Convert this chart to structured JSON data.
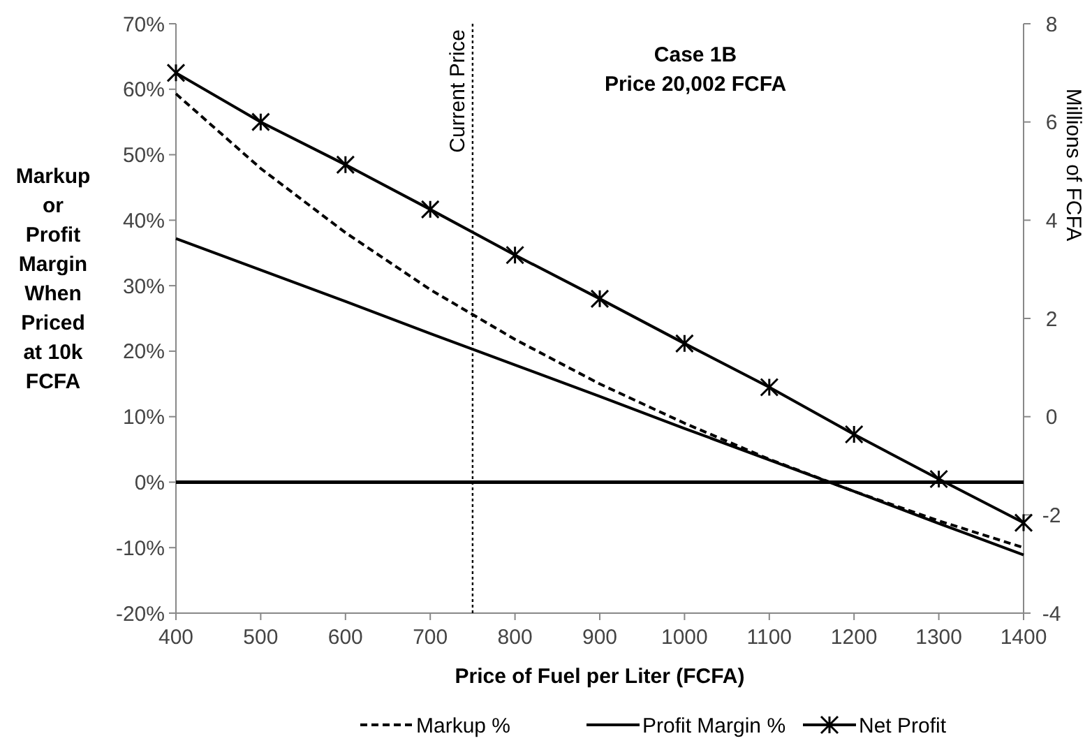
{
  "chart_data": {
    "type": "line",
    "xlabel": "Price of Fuel per Liter (FCFA)",
    "ylabel": "Markup or Profit Margin When Priced at 10k FCFA",
    "y2label": "Millions of FCFA",
    "x": [
      400,
      500,
      600,
      700,
      800,
      900,
      1000,
      1100,
      1200,
      1300,
      1400
    ],
    "xlim": [
      400,
      1400
    ],
    "xticks": [
      400,
      500,
      600,
      700,
      800,
      900,
      1000,
      1100,
      1200,
      1300,
      1400
    ],
    "ylim": [
      -20,
      70
    ],
    "yticks": [
      {
        "value": -20,
        "label": "-20%"
      },
      {
        "value": -10,
        "label": "-10%"
      },
      {
        "value": 0,
        "label": "0%"
      },
      {
        "value": 10,
        "label": "10%"
      },
      {
        "value": 20,
        "label": "20%"
      },
      {
        "value": 30,
        "label": "30%"
      },
      {
        "value": 40,
        "label": "40%"
      },
      {
        "value": 50,
        "label": "50%"
      },
      {
        "value": 60,
        "label": "60%"
      },
      {
        "value": 70,
        "label": "70%"
      }
    ],
    "y2lim": [
      -4,
      8
    ],
    "y2ticks": [
      -4,
      -2,
      0,
      2,
      4,
      6,
      8
    ],
    "series": [
      {
        "name": "Markup %",
        "color": "#000000",
        "line_style": "dashed",
        "marker": "none",
        "values": [
          59.3,
          47.9,
          38.1,
          29.4,
          21.8,
          15.0,
          9.0,
          3.5,
          -1.4,
          -5.9,
          -10.0
        ]
      },
      {
        "name": "Profit Margin %",
        "color": "#000000",
        "line_style": "solid",
        "marker": "none",
        "values": [
          37.2,
          32.4,
          27.6,
          22.7,
          17.9,
          13.1,
          8.2,
          3.4,
          -1.4,
          -6.3,
          -11.1
        ]
      },
      {
        "name": "Net Profit",
        "color": "#000000",
        "line_style": "solid",
        "marker": "cross",
        "axis": "y2",
        "values": [
          7.0,
          6.0,
          5.13,
          4.22,
          3.29,
          2.4,
          1.49,
          0.6,
          -0.36,
          -1.27,
          -2.16
        ]
      }
    ],
    "ref_lines": [
      {
        "axis": "x",
        "value": 750,
        "label": "Current Price",
        "line_style": "dotted",
        "color": "#000000"
      },
      {
        "axis": "y",
        "value": 0,
        "line_style": "solid",
        "color": "#000000"
      }
    ],
    "annotations": [
      "Case 1B",
      "Price 20,002 FCFA"
    ],
    "legend": "bottom",
    "grid": false
  }
}
